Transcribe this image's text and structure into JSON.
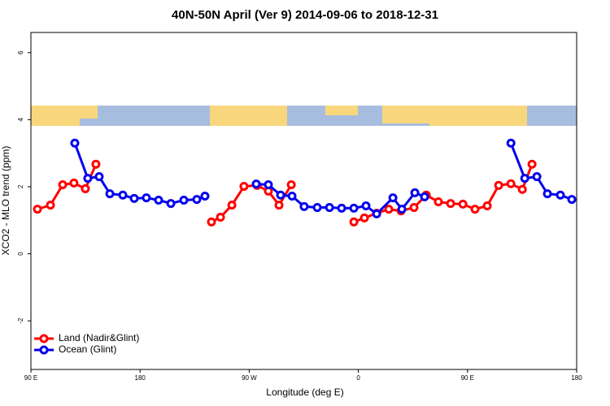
{
  "chart_data": {
    "type": "line",
    "title": "40N-50N April (Ver 9)   2014-09-06 to 2018-12-31",
    "x_label": "Longitude (deg E)",
    "y_label": "XCO2 - MLO trend (ppm)",
    "xlim": [
      90,
      540
    ],
    "ylim": [
      -3.45,
      6.6
    ],
    "xticks": [
      {
        "value": 90,
        "label": "90 E"
      },
      180,
      {
        "value": 270,
        "label": "90 W"
      },
      {
        "value": 360,
        "label": "0"
      },
      {
        "value": 450,
        "label": "90 E"
      },
      {
        "value": 540,
        "label": "180"
      }
    ],
    "yticks": [
      -2,
      0,
      2,
      4,
      6
    ],
    "legend": "bottom-left",
    "series": [
      {
        "name": "Land (Nadir&Glint)",
        "color": "#ff0000",
        "x": [
          95.4,
          106.1,
          116.2,
          125.5,
          134.9,
          143.6,
          null,
          238.9,
          246.3,
          255.7,
          265.7,
          276.5,
          285.8,
          294.6,
          304.7,
          null,
          356.3,
          365.0,
          375.1,
          385.1,
          395.2,
          405.9,
          416.0,
          426.0,
          436.1,
          446.2,
          456.2,
          466.3,
          475.7,
          485.8,
          495.2,
          503.2
        ],
        "values": [
          1.33,
          1.45,
          2.06,
          2.11,
          1.94,
          2.67,
          null,
          0.95,
          1.09,
          1.45,
          2.01,
          2.04,
          1.87,
          1.45,
          2.06,
          null,
          0.95,
          1.07,
          1.21,
          1.33,
          1.28,
          1.38,
          1.75,
          1.55,
          1.5,
          1.48,
          1.33,
          1.43,
          2.04,
          2.09,
          1.92,
          2.67
        ]
      },
      {
        "name": "Ocean (Glint)",
        "color": "#0000ee",
        "x": [
          126.2,
          136.9,
          146.3,
          155.1,
          165.8,
          175.2,
          185.2,
          195.3,
          205.4,
          216.1,
          226.8,
          233.5,
          null,
          275.8,
          285.8,
          295.9,
          305.3,
          315.3,
          326.1,
          336.2,
          346.2,
          356.3,
          366.3,
          375.1,
          388.5,
          395.9,
          406.6,
          414.6,
          null,
          485.8,
          497.2,
          507.2,
          515.9,
          526.6,
          536.0
        ],
        "values": [
          3.3,
          2.25,
          2.3,
          1.79,
          1.75,
          1.65,
          1.67,
          1.6,
          1.5,
          1.6,
          1.62,
          1.72,
          null,
          2.08,
          2.06,
          1.75,
          1.72,
          1.41,
          1.38,
          1.38,
          1.36,
          1.36,
          1.43,
          1.19,
          1.67,
          1.33,
          1.82,
          1.7,
          null,
          3.3,
          2.25,
          2.3,
          1.79,
          1.75,
          1.62
        ]
      }
    ]
  }
}
